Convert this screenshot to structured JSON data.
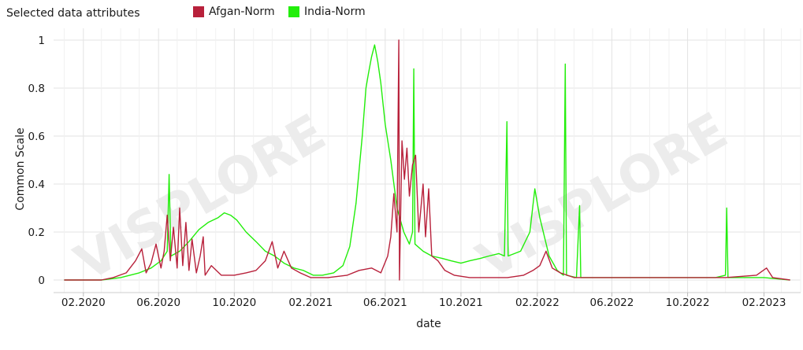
{
  "header": {
    "title": "Selected data attributes"
  },
  "watermark": "VISPLORE",
  "chart_data": {
    "type": "line",
    "xlabel": "date",
    "ylabel": "Common Scale",
    "ylim": [
      0,
      1
    ],
    "xlim": [
      "2019-12-15",
      "2023-04-01"
    ],
    "y_ticks": [
      0,
      0.2,
      0.4,
      0.6,
      0.8,
      1
    ],
    "y_tick_labels": [
      "0",
      "0.2",
      "0.4",
      "0.6",
      "0.8",
      "1"
    ],
    "x_ticks": [
      "2020-02-01",
      "2020-06-01",
      "2020-10-01",
      "2021-02-01",
      "2021-06-01",
      "2021-10-01",
      "2022-02-01",
      "2022-06-01",
      "2022-10-01",
      "2023-02-01"
    ],
    "x_tick_labels": [
      "02.2020",
      "06.2020",
      "10.2020",
      "02.2021",
      "06.2021",
      "10.2021",
      "02.2022",
      "06.2022",
      "10.2022",
      "02.2023"
    ],
    "grid": true,
    "legend_position": "top",
    "series": [
      {
        "name": "Afgan-Norm",
        "color": "#b8213b",
        "points": [
          [
            "2020-01-01",
            0.0
          ],
          [
            "2020-03-01",
            0.0
          ],
          [
            "2020-03-20",
            0.01
          ],
          [
            "2020-04-10",
            0.03
          ],
          [
            "2020-04-25",
            0.08
          ],
          [
            "2020-05-05",
            0.13
          ],
          [
            "2020-05-12",
            0.03
          ],
          [
            "2020-05-20",
            0.07
          ],
          [
            "2020-05-28",
            0.15
          ],
          [
            "2020-06-05",
            0.05
          ],
          [
            "2020-06-10",
            0.12
          ],
          [
            "2020-06-15",
            0.27
          ],
          [
            "2020-06-20",
            0.08
          ],
          [
            "2020-06-25",
            0.22
          ],
          [
            "2020-07-01",
            0.05
          ],
          [
            "2020-07-05",
            0.3
          ],
          [
            "2020-07-10",
            0.06
          ],
          [
            "2020-07-15",
            0.24
          ],
          [
            "2020-07-20",
            0.04
          ],
          [
            "2020-07-25",
            0.17
          ],
          [
            "2020-08-01",
            0.03
          ],
          [
            "2020-08-07",
            0.1
          ],
          [
            "2020-08-12",
            0.18
          ],
          [
            "2020-08-15",
            0.02
          ],
          [
            "2020-08-25",
            0.06
          ],
          [
            "2020-09-10",
            0.02
          ],
          [
            "2020-10-01",
            0.02
          ],
          [
            "2020-10-20",
            0.03
          ],
          [
            "2020-11-05",
            0.04
          ],
          [
            "2020-11-20",
            0.08
          ],
          [
            "2020-12-01",
            0.16
          ],
          [
            "2020-12-10",
            0.05
          ],
          [
            "2020-12-20",
            0.12
          ],
          [
            "2021-01-01",
            0.05
          ],
          [
            "2021-01-15",
            0.03
          ],
          [
            "2021-02-01",
            0.01
          ],
          [
            "2021-03-01",
            0.01
          ],
          [
            "2021-04-01",
            0.02
          ],
          [
            "2021-04-20",
            0.04
          ],
          [
            "2021-05-10",
            0.05
          ],
          [
            "2021-05-25",
            0.03
          ],
          [
            "2021-06-05",
            0.1
          ],
          [
            "2021-06-10",
            0.18
          ],
          [
            "2021-06-15",
            0.36
          ],
          [
            "2021-06-20",
            0.2
          ],
          [
            "2021-06-23",
            1.0
          ],
          [
            "2021-06-24",
            0.0
          ],
          [
            "2021-06-28",
            0.58
          ],
          [
            "2021-07-02",
            0.42
          ],
          [
            "2021-07-06",
            0.55
          ],
          [
            "2021-07-10",
            0.35
          ],
          [
            "2021-07-15",
            0.48
          ],
          [
            "2021-07-20",
            0.52
          ],
          [
            "2021-07-25",
            0.2
          ],
          [
            "2021-08-01",
            0.4
          ],
          [
            "2021-08-05",
            0.18
          ],
          [
            "2021-08-10",
            0.38
          ],
          [
            "2021-08-15",
            0.1
          ],
          [
            "2021-08-25",
            0.08
          ],
          [
            "2021-09-05",
            0.04
          ],
          [
            "2021-09-20",
            0.02
          ],
          [
            "2021-10-15",
            0.01
          ],
          [
            "2021-11-15",
            0.01
          ],
          [
            "2021-12-15",
            0.01
          ],
          [
            "2022-01-10",
            0.02
          ],
          [
            "2022-01-25",
            0.04
          ],
          [
            "2022-02-05",
            0.06
          ],
          [
            "2022-02-15",
            0.12
          ],
          [
            "2022-02-25",
            0.05
          ],
          [
            "2022-03-10",
            0.03
          ],
          [
            "2022-04-01",
            0.01
          ],
          [
            "2022-06-01",
            0.01
          ],
          [
            "2022-09-01",
            0.01
          ],
          [
            "2022-12-01",
            0.01
          ],
          [
            "2023-01-20",
            0.02
          ],
          [
            "2023-02-05",
            0.05
          ],
          [
            "2023-02-15",
            0.01
          ],
          [
            "2023-03-15",
            0.0
          ]
        ]
      },
      {
        "name": "India-Norm",
        "color": "#22ee0a",
        "points": [
          [
            "2020-01-01",
            0.0
          ],
          [
            "2020-03-01",
            0.0
          ],
          [
            "2020-04-01",
            0.01
          ],
          [
            "2020-05-01",
            0.03
          ],
          [
            "2020-05-20",
            0.05
          ],
          [
            "2020-06-05",
            0.08
          ],
          [
            "2020-06-15",
            0.12
          ],
          [
            "2020-06-18",
            0.44
          ],
          [
            "2020-06-21",
            0.1
          ],
          [
            "2020-07-05",
            0.12
          ],
          [
            "2020-07-20",
            0.16
          ],
          [
            "2020-08-05",
            0.21
          ],
          [
            "2020-08-20",
            0.24
          ],
          [
            "2020-09-05",
            0.26
          ],
          [
            "2020-09-15",
            0.28
          ],
          [
            "2020-09-25",
            0.27
          ],
          [
            "2020-10-05",
            0.25
          ],
          [
            "2020-10-20",
            0.2
          ],
          [
            "2020-11-05",
            0.16
          ],
          [
            "2020-11-20",
            0.12
          ],
          [
            "2020-12-05",
            0.1
          ],
          [
            "2020-12-20",
            0.07
          ],
          [
            "2021-01-05",
            0.05
          ],
          [
            "2021-01-20",
            0.04
          ],
          [
            "2021-02-05",
            0.02
          ],
          [
            "2021-02-20",
            0.02
          ],
          [
            "2021-03-10",
            0.03
          ],
          [
            "2021-03-25",
            0.06
          ],
          [
            "2021-04-05",
            0.14
          ],
          [
            "2021-04-15",
            0.32
          ],
          [
            "2021-04-25",
            0.6
          ],
          [
            "2021-05-01",
            0.8
          ],
          [
            "2021-05-05",
            0.86
          ],
          [
            "2021-05-10",
            0.93
          ],
          [
            "2021-05-15",
            0.98
          ],
          [
            "2021-05-20",
            0.91
          ],
          [
            "2021-05-25",
            0.82
          ],
          [
            "2021-06-01",
            0.65
          ],
          [
            "2021-06-10",
            0.5
          ],
          [
            "2021-06-20",
            0.3
          ],
          [
            "2021-07-01",
            0.2
          ],
          [
            "2021-07-10",
            0.15
          ],
          [
            "2021-07-15",
            0.2
          ],
          [
            "2021-07-17",
            0.88
          ],
          [
            "2021-07-19",
            0.15
          ],
          [
            "2021-08-01",
            0.12
          ],
          [
            "2021-08-15",
            0.1
          ],
          [
            "2021-09-01",
            0.09
          ],
          [
            "2021-09-15",
            0.08
          ],
          [
            "2021-10-01",
            0.07
          ],
          [
            "2021-10-15",
            0.08
          ],
          [
            "2021-11-01",
            0.09
          ],
          [
            "2021-11-15",
            0.1
          ],
          [
            "2021-12-01",
            0.11
          ],
          [
            "2021-12-10",
            0.1
          ],
          [
            "2021-12-14",
            0.66
          ],
          [
            "2021-12-16",
            0.1
          ],
          [
            "2022-01-05",
            0.12
          ],
          [
            "2022-01-20",
            0.2
          ],
          [
            "2022-01-28",
            0.38
          ],
          [
            "2022-02-05",
            0.26
          ],
          [
            "2022-02-20",
            0.1
          ],
          [
            "2022-03-05",
            0.04
          ],
          [
            "2022-03-15",
            0.02
          ],
          [
            "2022-03-18",
            0.9
          ],
          [
            "2022-03-20",
            0.02
          ],
          [
            "2022-04-05",
            0.01
          ],
          [
            "2022-04-10",
            0.31
          ],
          [
            "2022-04-12",
            0.01
          ],
          [
            "2022-06-01",
            0.01
          ],
          [
            "2022-09-01",
            0.01
          ],
          [
            "2022-11-15",
            0.01
          ],
          [
            "2022-12-01",
            0.02
          ],
          [
            "2022-12-03",
            0.3
          ],
          [
            "2022-12-05",
            0.01
          ],
          [
            "2023-02-01",
            0.01
          ],
          [
            "2023-03-15",
            0.0
          ]
        ]
      }
    ]
  }
}
